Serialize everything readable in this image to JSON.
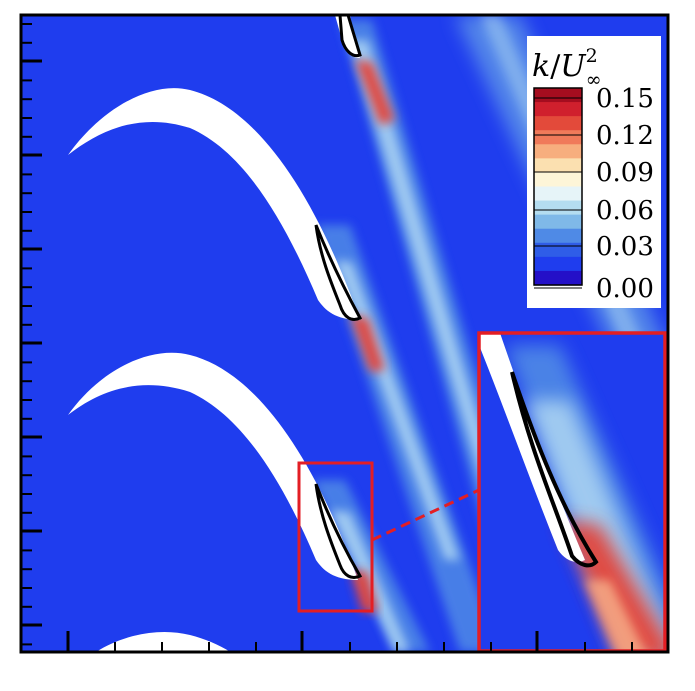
{
  "chart_data": {
    "type": "heatmap",
    "title": "",
    "xlabel": "",
    "ylabel": "",
    "colorbar": {
      "title": {
        "numerator": "k",
        "slash": "/",
        "symbol": "U",
        "superscript": "2",
        "subscript": "∞"
      },
      "ticks": [
        "0.15",
        "0.12",
        "0.09",
        "0.06",
        "0.03",
        "0.00"
      ],
      "range": [
        0.0,
        0.15
      ],
      "colormap": "RdYlBu_r",
      "levels": 11,
      "placement": "top-right"
    },
    "field_background_color": "#1f3dee",
    "colors": {
      "low": "#1f3dee",
      "mid": "#fdf5d8",
      "high": "#a50d1f",
      "blade": "#ffffff",
      "zoom_box": "#e31e24"
    },
    "zoom_inset": {
      "shown": true,
      "placement": "bottom-right"
    },
    "grid": false
  }
}
